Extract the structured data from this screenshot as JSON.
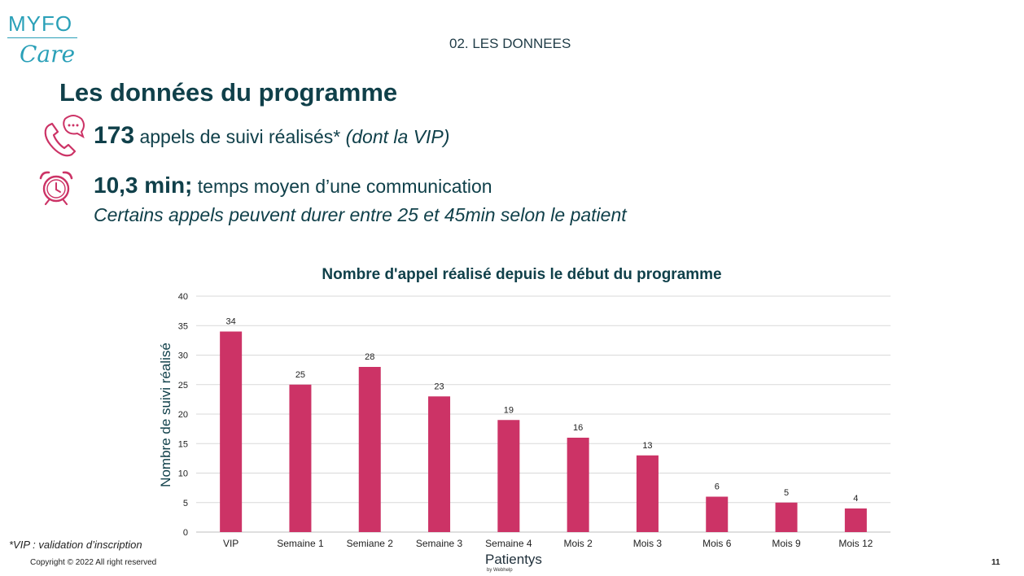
{
  "logo": {
    "top": "MYFO",
    "bottom": "Care"
  },
  "section_title": "02. LES DONNEES",
  "page_title": "Les données du programme",
  "stat1": {
    "value": "173",
    "text": "appels de suivi réalisés*",
    "note": "(dont la VIP)"
  },
  "stat2": {
    "value": "10,3 min;",
    "text": "temps moyen d’une communication",
    "sub": "Certains appels peuvent durer entre 25 et 45min selon le patient"
  },
  "footnote": "*VIP : validation d’inscription",
  "copyright": "Copyright © 2022 All right reserved",
  "brand": {
    "name": "Patientys",
    "by": "by Webhelp"
  },
  "page_number": "11",
  "colors": {
    "bar": "#cc3366",
    "text": "#10404a",
    "accent": "#2aa0b8"
  },
  "icons": [
    "phone-chat-icon",
    "alarm-clock-icon"
  ],
  "chart_data": {
    "type": "bar",
    "title": "Nombre d'appel réalisé depuis le début du programme",
    "xlabel": "",
    "ylabel": "Nombre de suivi réalisé",
    "categories": [
      "VIP",
      "Semaine 1",
      "Semiane 2",
      "Semaine 3",
      "Semaine 4",
      "Mois 2",
      "Mois 3",
      "Mois 6",
      "Mois 9",
      "Mois 12"
    ],
    "values": [
      34,
      25,
      28,
      23,
      19,
      16,
      13,
      6,
      5,
      4
    ],
    "ylim": [
      0,
      40
    ],
    "yticks": [
      0,
      5,
      10,
      15,
      20,
      25,
      30,
      35,
      40
    ],
    "grid": true,
    "data_labels": true
  }
}
